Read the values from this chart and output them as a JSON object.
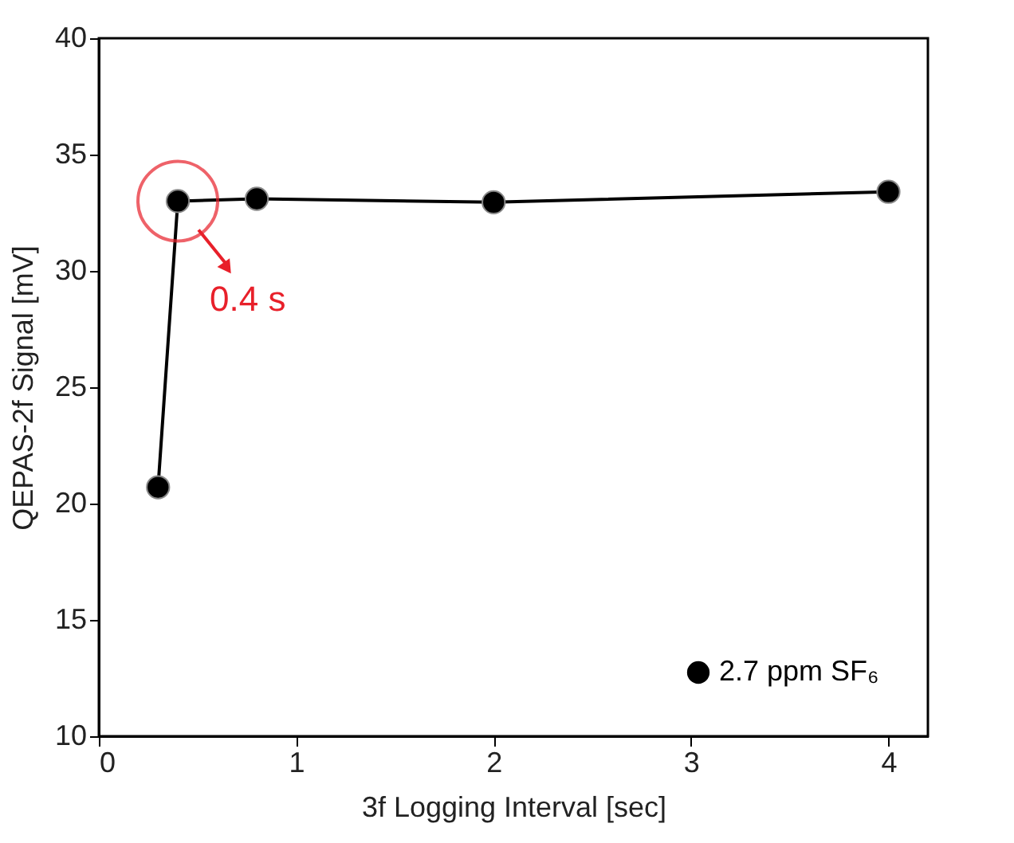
{
  "chart_data": {
    "type": "line",
    "xlabel": "3f Logging Interval [sec]",
    "ylabel": "QEPAS-2f Signal [mV]",
    "x": [
      0.3,
      0.4,
      0.8,
      2,
      4
    ],
    "series": [
      {
        "name": "2.7 ppm SF₆",
        "color": "#000000",
        "values": [
          20.7,
          33.0,
          33.1,
          32.95,
          33.4
        ]
      }
    ],
    "xlim": [
      0,
      4.2
    ],
    "xticks": [
      0,
      1,
      2,
      3,
      4
    ],
    "ylim": [
      10,
      40
    ],
    "yticks": [
      10,
      15,
      20,
      25,
      30,
      35,
      40
    ],
    "annotations": [
      {
        "text": "0.4 s",
        "x": 0.4,
        "y": 33.0
      }
    ],
    "marker": "circle",
    "line_style": "solid",
    "grid": false,
    "legend": "bottom right"
  }
}
